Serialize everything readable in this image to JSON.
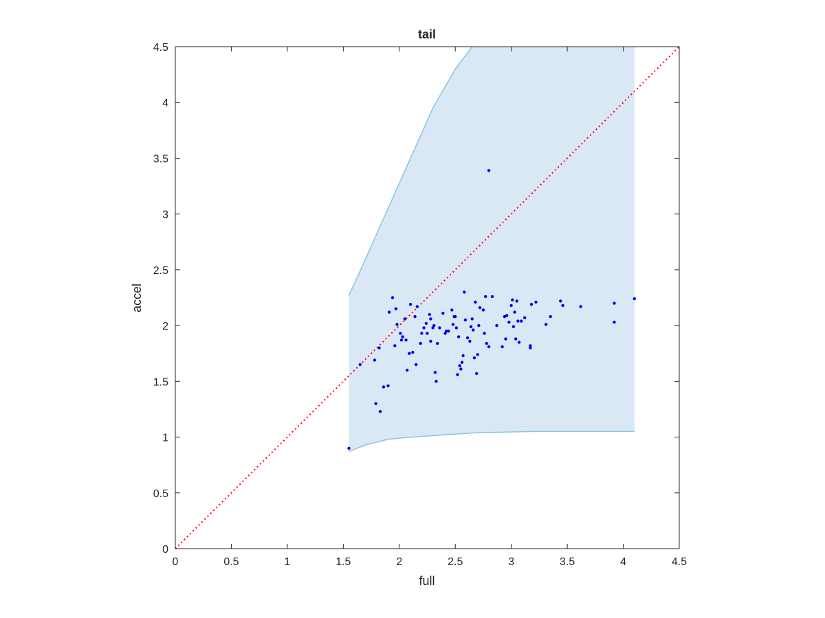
{
  "chart_data": {
    "type": "scatter",
    "title": "tail",
    "xlabel": "full",
    "ylabel": "accel",
    "xlim": [
      0,
      4.5
    ],
    "ylim": [
      0,
      4.5
    ],
    "xticks": [
      "0",
      "0.5",
      "1",
      "1.5",
      "2",
      "2.5",
      "3",
      "3.5",
      "4",
      "4.5"
    ],
    "yticks": [
      "0",
      "0.5",
      "1",
      "1.5",
      "2",
      "2.5",
      "3",
      "3.5",
      "4",
      "4.5"
    ],
    "grid": false,
    "colors": {
      "points": "#0000ee",
      "band_fill": "#d9e8f4",
      "band_edge": "#8fc2e0",
      "reference_line": "#ff0000",
      "axes": "#262626"
    },
    "reference_line": {
      "style": "dotted",
      "points": [
        [
          0,
          0
        ],
        [
          4.5,
          4.5
        ]
      ]
    },
    "band": {
      "upper": [
        [
          1.55,
          2.27
        ],
        [
          1.7,
          2.6
        ],
        [
          1.9,
          3.05
        ],
        [
          2.1,
          3.5
        ],
        [
          2.3,
          3.95
        ],
        [
          2.5,
          4.3
        ],
        [
          2.65,
          4.5
        ],
        [
          4.1,
          4.5
        ]
      ],
      "lower": [
        [
          1.55,
          0.87
        ],
        [
          1.7,
          0.93
        ],
        [
          1.9,
          0.98
        ],
        [
          2.1,
          1.0
        ],
        [
          2.4,
          1.02
        ],
        [
          2.7,
          1.04
        ],
        [
          3.2,
          1.05
        ],
        [
          4.1,
          1.05
        ]
      ]
    },
    "points": [
      [
        1.55,
        0.9
      ],
      [
        1.65,
        1.65
      ],
      [
        1.78,
        1.69
      ],
      [
        1.79,
        1.3
      ],
      [
        1.82,
        1.8
      ],
      [
        1.83,
        1.23
      ],
      [
        1.86,
        1.45
      ],
      [
        1.9,
        1.46
      ],
      [
        1.91,
        2.12
      ],
      [
        1.94,
        2.25
      ],
      [
        1.96,
        1.82
      ],
      [
        1.97,
        2.15
      ],
      [
        1.98,
        2.01
      ],
      [
        2.01,
        1.93
      ],
      [
        2.02,
        1.87
      ],
      [
        2.03,
        1.9
      ],
      [
        2.05,
        2.06
      ],
      [
        2.06,
        1.87
      ],
      [
        2.07,
        1.6
      ],
      [
        2.09,
        1.75
      ],
      [
        2.1,
        2.19
      ],
      [
        2.12,
        1.76
      ],
      [
        2.14,
        2.08
      ],
      [
        2.15,
        1.65
      ],
      [
        2.16,
        2.17
      ],
      [
        2.19,
        1.84
      ],
      [
        2.2,
        1.93
      ],
      [
        2.22,
        1.98
      ],
      [
        2.24,
        2.02
      ],
      [
        2.25,
        1.93
      ],
      [
        2.27,
        2.1
      ],
      [
        2.28,
        1.86
      ],
      [
        2.28,
        2.06
      ],
      [
        2.3,
        1.98
      ],
      [
        2.31,
        2.0
      ],
      [
        2.32,
        1.58
      ],
      [
        2.33,
        1.5
      ],
      [
        2.34,
        1.84
      ],
      [
        2.36,
        1.98
      ],
      [
        2.39,
        2.11
      ],
      [
        2.41,
        1.93
      ],
      [
        2.42,
        1.95
      ],
      [
        2.44,
        1.95
      ],
      [
        2.47,
        2.14
      ],
      [
        2.48,
        2.01
      ],
      [
        2.49,
        2.08
      ],
      [
        2.5,
        2.08
      ],
      [
        2.51,
        1.98
      ],
      [
        2.52,
        1.56
      ],
      [
        2.53,
        1.9
      ],
      [
        2.54,
        1.64
      ],
      [
        2.55,
        1.61
      ],
      [
        2.56,
        1.67
      ],
      [
        2.57,
        1.73
      ],
      [
        2.58,
        2.3
      ],
      [
        2.59,
        2.05
      ],
      [
        2.61,
        1.89
      ],
      [
        2.63,
        1.86
      ],
      [
        2.64,
        1.99
      ],
      [
        2.65,
        2.06
      ],
      [
        2.66,
        1.96
      ],
      [
        2.67,
        1.71
      ],
      [
        2.68,
        2.21
      ],
      [
        2.69,
        1.57
      ],
      [
        2.7,
        1.74
      ],
      [
        2.71,
        2.0
      ],
      [
        2.72,
        2.16
      ],
      [
        2.75,
        2.14
      ],
      [
        2.76,
        1.93
      ],
      [
        2.77,
        2.26
      ],
      [
        2.78,
        1.84
      ],
      [
        2.8,
        1.81
      ],
      [
        2.8,
        3.39
      ],
      [
        2.83,
        2.26
      ],
      [
        2.87,
        2.0
      ],
      [
        2.92,
        1.81
      ],
      [
        2.94,
        2.08
      ],
      [
        2.95,
        1.88
      ],
      [
        2.96,
        2.09
      ],
      [
        2.98,
        2.03
      ],
      [
        3.0,
        2.18
      ],
      [
        3.01,
        2.23
      ],
      [
        3.02,
        1.99
      ],
      [
        3.03,
        2.12
      ],
      [
        3.04,
        1.88
      ],
      [
        3.05,
        2.22
      ],
      [
        3.06,
        2.04
      ],
      [
        3.07,
        1.85
      ],
      [
        3.09,
        2.04
      ],
      [
        3.12,
        2.07
      ],
      [
        3.17,
        1.82
      ],
      [
        3.17,
        1.8
      ],
      [
        3.18,
        2.19
      ],
      [
        3.22,
        2.21
      ],
      [
        3.31,
        2.01
      ],
      [
        3.35,
        2.08
      ],
      [
        3.44,
        2.22
      ],
      [
        3.46,
        2.18
      ],
      [
        3.62,
        2.17
      ],
      [
        3.92,
        2.2
      ],
      [
        3.92,
        2.03
      ],
      [
        4.1,
        2.24
      ]
    ]
  }
}
